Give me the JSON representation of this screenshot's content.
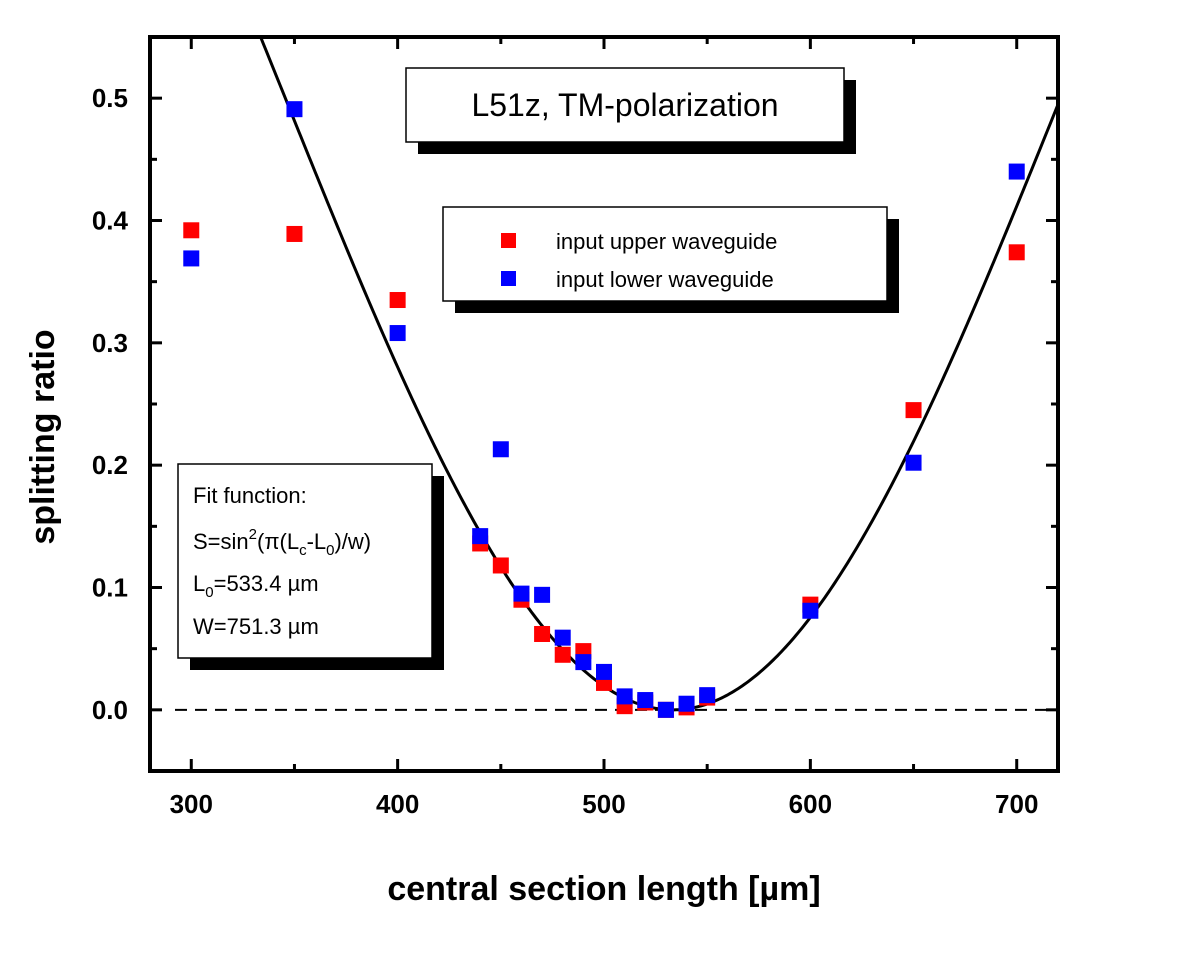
{
  "chart_data": {
    "type": "scatter",
    "title": "L51z, TM-polarization",
    "xlabel": "central section length [µm]",
    "ylabel": "splitting ratio",
    "xlim": [
      280,
      720
    ],
    "ylim": [
      -0.05,
      0.55
    ],
    "xticks": [
      300,
      400,
      500,
      600,
      700
    ],
    "yticks": [
      0.0,
      0.1,
      0.2,
      0.3,
      0.4,
      0.5
    ],
    "xtick_labels": [
      "300",
      "400",
      "500",
      "600",
      "700"
    ],
    "ytick_labels": [
      "0.0",
      "0.1",
      "0.2",
      "0.3",
      "0.4",
      "0.5"
    ],
    "legend_position": "upper-center",
    "series": [
      {
        "name": "input upper waveguide",
        "color": "#ff0000",
        "points": [
          [
            300,
            0.392
          ],
          [
            350,
            0.389
          ],
          [
            400,
            0.335
          ],
          [
            440,
            0.136
          ],
          [
            450,
            0.118
          ],
          [
            460,
            0.09
          ],
          [
            470,
            0.062
          ],
          [
            480,
            0.045
          ],
          [
            490,
            0.048
          ],
          [
            500,
            0.022
          ],
          [
            510,
            0.003
          ],
          [
            520,
            0.006
          ],
          [
            530,
            0.0
          ],
          [
            540,
            0.002
          ],
          [
            550,
            0.01
          ],
          [
            600,
            0.086
          ],
          [
            650,
            0.245
          ],
          [
            700,
            0.374
          ]
        ]
      },
      {
        "name": "input lower waveguide",
        "color": "#0000ff",
        "points": [
          [
            300,
            0.369
          ],
          [
            350,
            0.491
          ],
          [
            400,
            0.308
          ],
          [
            440,
            0.142
          ],
          [
            450,
            0.213
          ],
          [
            460,
            0.095
          ],
          [
            470,
            0.094
          ],
          [
            480,
            0.059
          ],
          [
            490,
            0.039
          ],
          [
            500,
            0.031
          ],
          [
            510,
            0.011
          ],
          [
            520,
            0.008
          ],
          [
            530,
            0.0
          ],
          [
            540,
            0.005
          ],
          [
            550,
            0.012
          ],
          [
            600,
            0.081
          ],
          [
            650,
            0.202
          ],
          [
            700,
            0.44
          ]
        ]
      }
    ],
    "fit": {
      "name": "fit",
      "color": "#000000",
      "L0": 533.4,
      "W": 751.3
    },
    "reference_line_y": 0.0,
    "fit_box": {
      "line1": "Fit function:",
      "line2_prefix": "S=sin",
      "line2_sup": "2",
      "line2_mid": "(π(L",
      "line2_sub1": "c",
      "line2_mid2": "-L",
      "line2_sub2": "0",
      "line2_end": ")/w)",
      "line3_prefix": "L",
      "line3_sub": "0",
      "line3_end": "=533.4 µm",
      "line4": "W=751.3 µm"
    }
  }
}
